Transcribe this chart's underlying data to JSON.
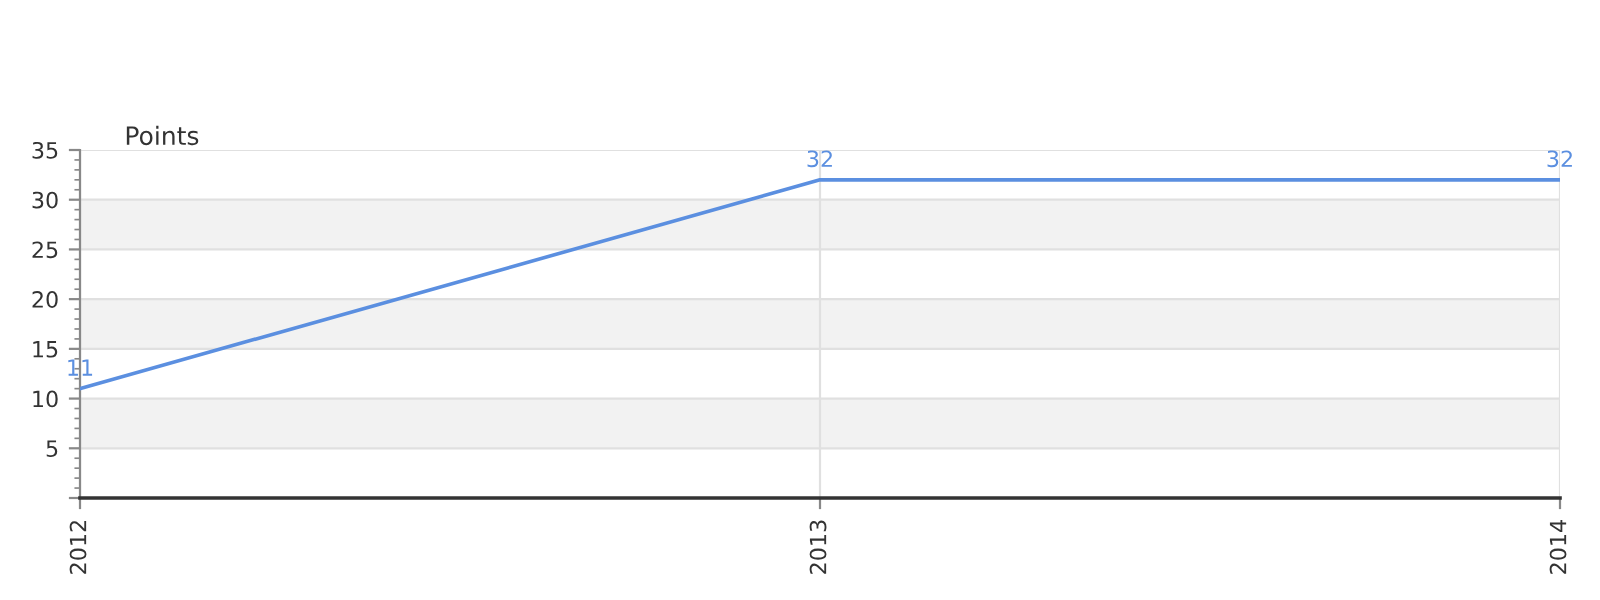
{
  "chart_data": {
    "type": "line",
    "ylabel": "Points",
    "categories": [
      "2012",
      "2013",
      "2014"
    ],
    "series": [
      {
        "color": "#5b8fe0",
        "values": [
          11,
          32,
          32
        ]
      }
    ],
    "ylim": [
      0,
      35
    ],
    "yticks": [
      {
        "value": 0,
        "label": null
      },
      5,
      10,
      15,
      20,
      25,
      30,
      35
    ],
    "grid": true,
    "data_labels": true,
    "marker": "none",
    "line_style": "solid",
    "legend": false
  }
}
